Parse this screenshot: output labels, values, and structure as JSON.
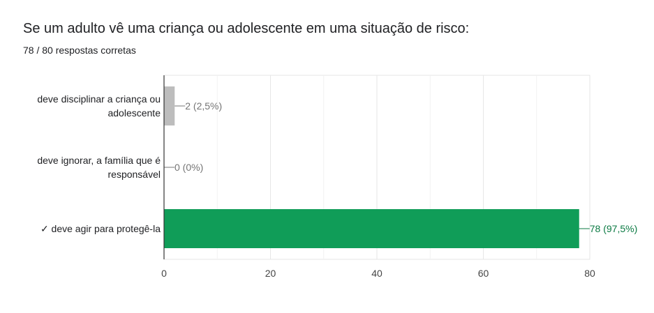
{
  "header": {
    "title": "Se um adulto vê uma criança ou adolescente em uma situação de risco:",
    "subtitle": "78 / 80 respostas corretas"
  },
  "chart_data": {
    "type": "bar",
    "orientation": "horizontal",
    "categories": [
      [
        "deve disciplinar a criança ou",
        "adolescente"
      ],
      [
        "deve ignorar, a família que é",
        "responsável"
      ],
      [
        "✓ deve agir para protegê-la"
      ]
    ],
    "values": [
      2,
      0,
      78
    ],
    "data_labels": [
      "2 (2,5%)",
      "0 (0%)",
      "78 (97,5%)"
    ],
    "colors": [
      "#bdbdbd",
      "#bdbdbd",
      "#109d58"
    ],
    "label_colors": [
      "#757575",
      "#757575",
      "#0b7a43"
    ],
    "correct_index": 2,
    "xlim": [
      0,
      80
    ],
    "xticks": [
      0,
      20,
      40,
      60,
      80
    ],
    "grid": true
  }
}
